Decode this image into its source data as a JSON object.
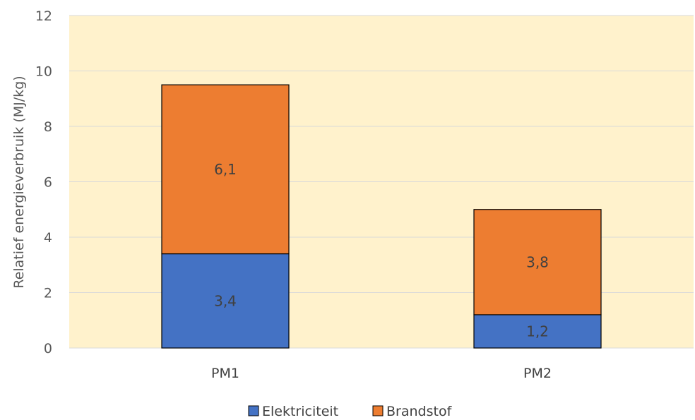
{
  "chart_data": {
    "type": "bar",
    "stacked": true,
    "categories": [
      "PM1",
      "PM2"
    ],
    "series": [
      {
        "name": "Elektriciteit",
        "values": [
          3.4,
          1.2
        ],
        "labels": [
          "3,4",
          "1,2"
        ],
        "color": "#4472C4"
      },
      {
        "name": "Brandstof",
        "values": [
          6.1,
          3.8
        ],
        "labels": [
          "6,1",
          "3,8"
        ],
        "color": "#ED7D31"
      }
    ],
    "ylabel": "Relatief energieverbruik (MJ/kg)",
    "ylim": [
      0,
      12
    ],
    "yticks": [
      0,
      2,
      4,
      6,
      8,
      10,
      12
    ],
    "ytick_labels": [
      "0",
      "2",
      "4",
      "6",
      "8",
      "10",
      "12"
    ],
    "grid": true,
    "legend": "bottom",
    "plot_background": "#FFF2CC",
    "grid_color": "#D9D9D9"
  }
}
